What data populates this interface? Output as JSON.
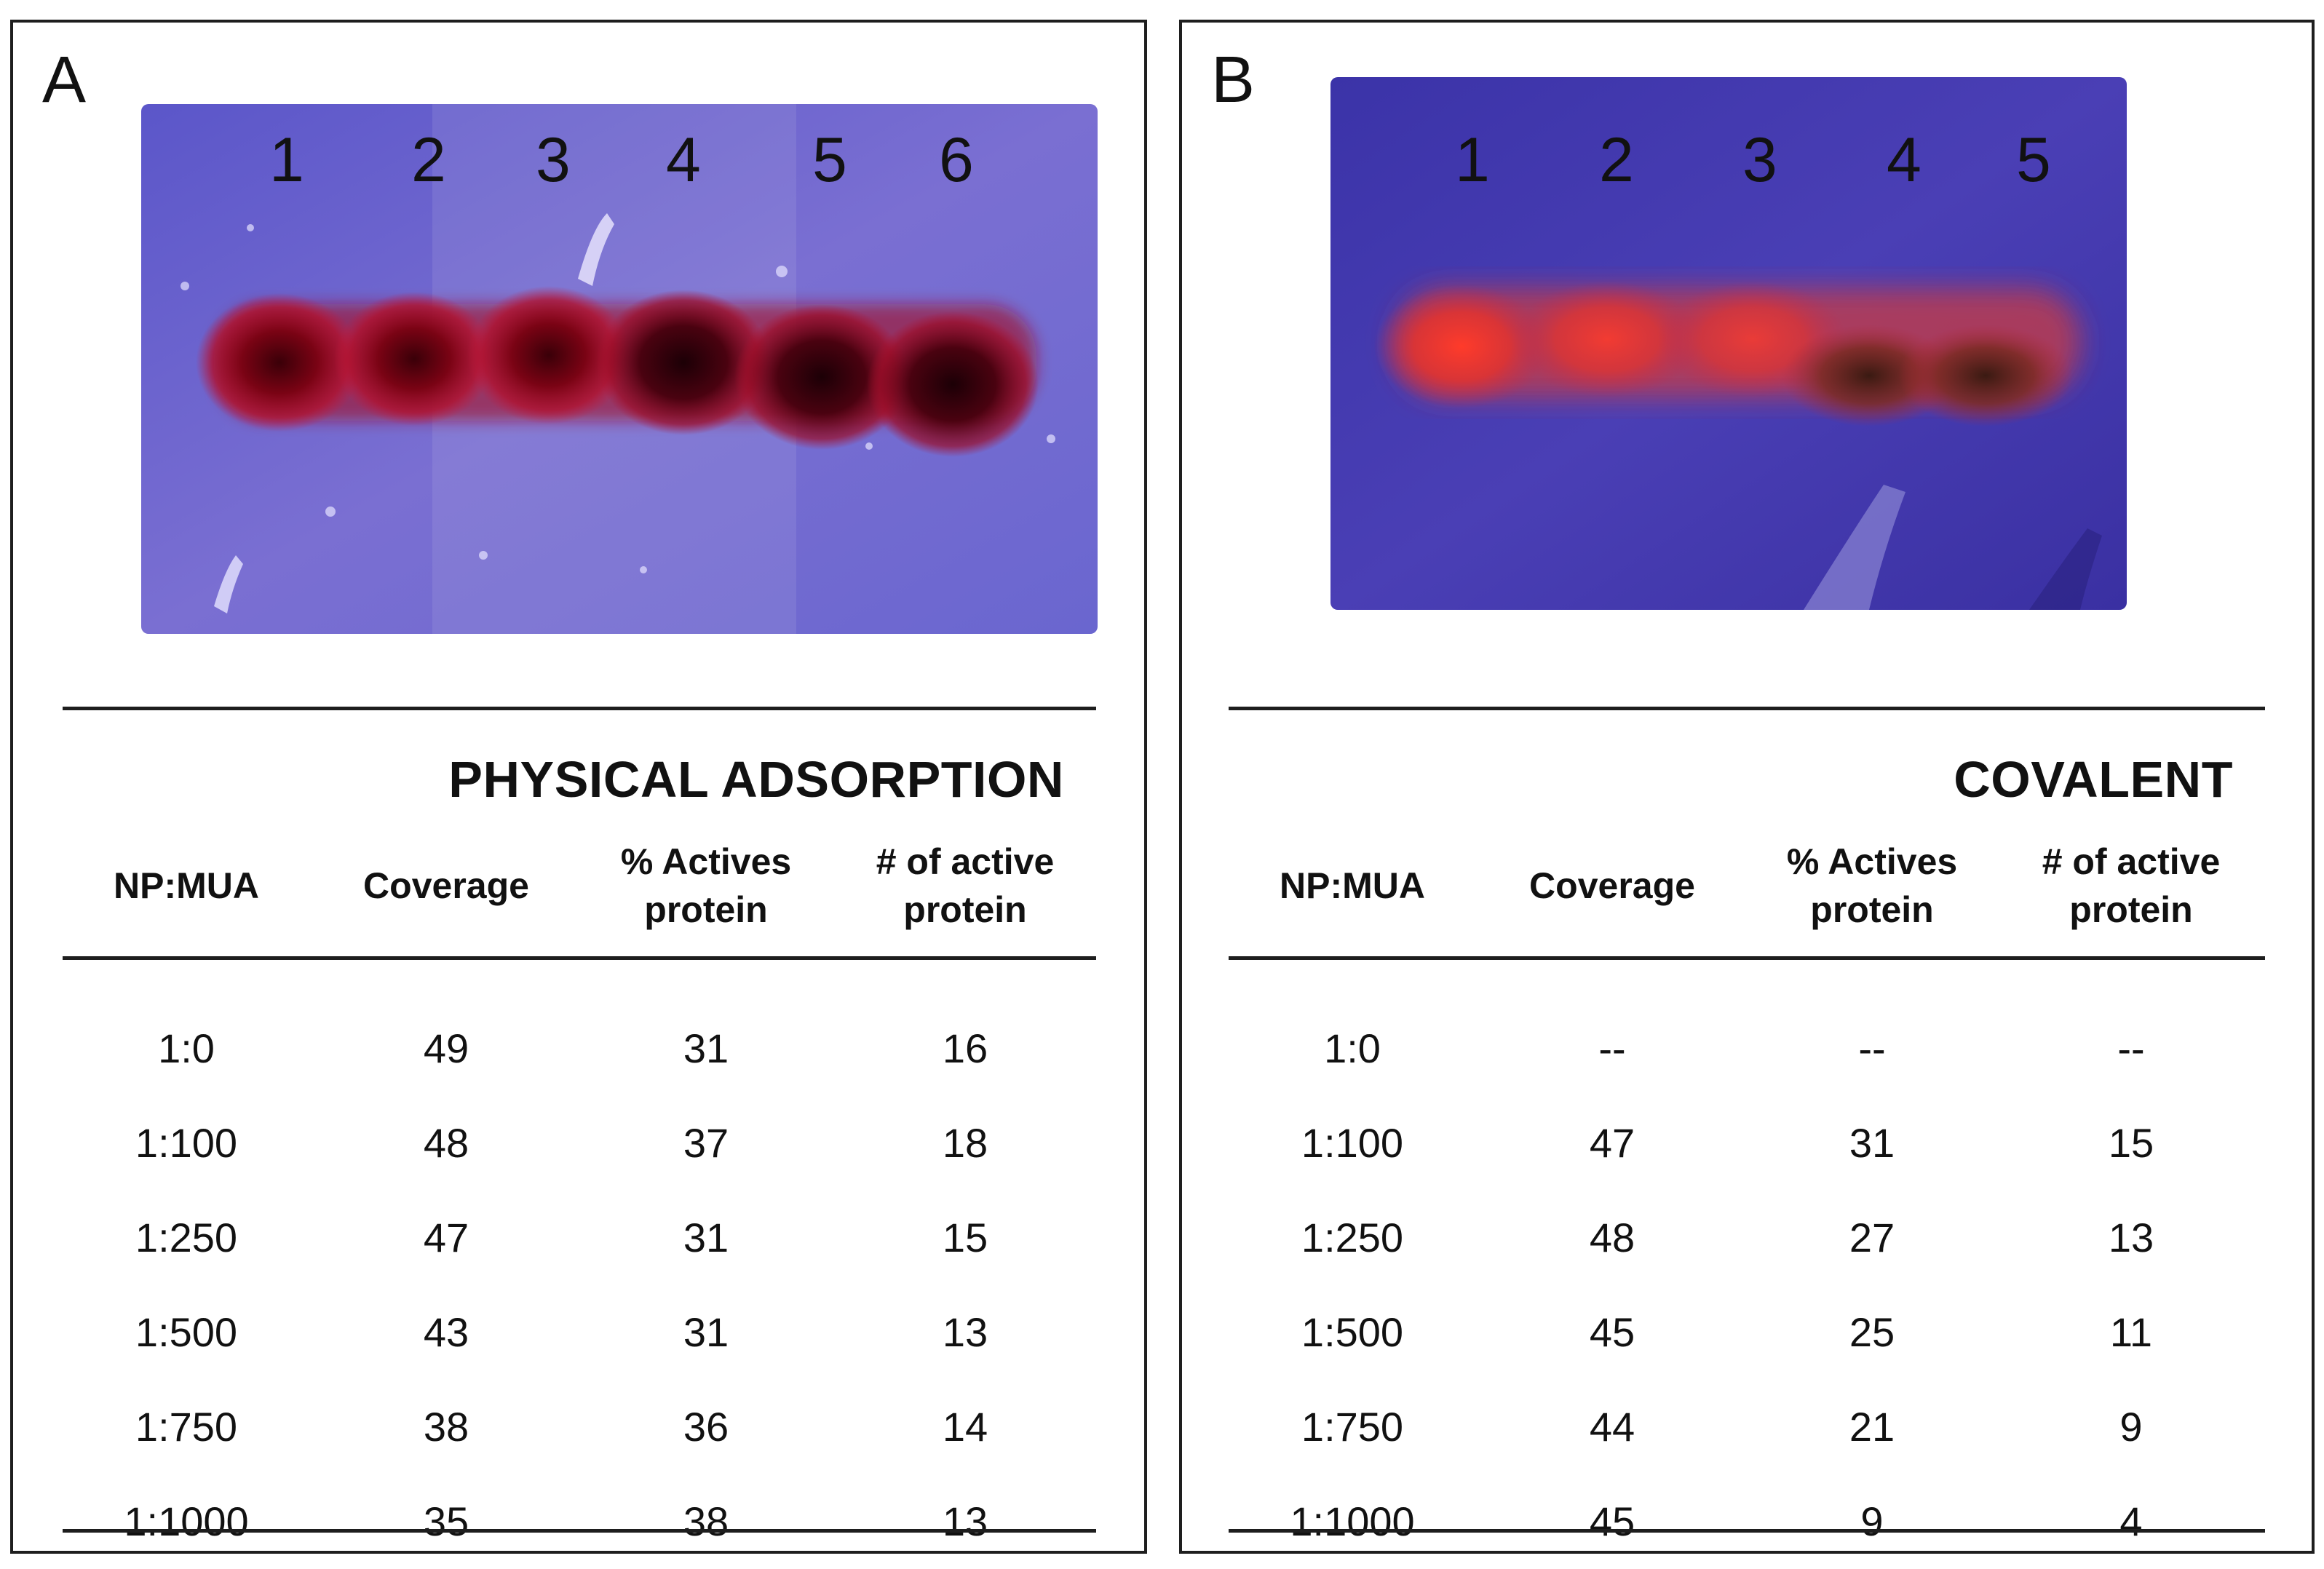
{
  "panels": [
    {
      "letter": "A",
      "lanes": [
        "1",
        "2",
        "3",
        "4",
        "5",
        "6"
      ],
      "table": {
        "title": "PHYSICAL ADSORPTION",
        "headers": [
          "NP:MUA",
          "Coverage",
          "% Actives\nprotein",
          "# of active\nprotein"
        ],
        "rows": [
          [
            "1:0",
            "49",
            "31",
            "16"
          ],
          [
            "1:100",
            "48",
            "37",
            "18"
          ],
          [
            "1:250",
            "47",
            "31",
            "15"
          ],
          [
            "1:500",
            "43",
            "31",
            "13"
          ],
          [
            "1:750",
            "38",
            "36",
            "14"
          ],
          [
            "1:1000",
            "35",
            "38",
            "13"
          ]
        ]
      }
    },
    {
      "letter": "B",
      "lanes": [
        "1",
        "2",
        "3",
        "4",
        "5"
      ],
      "table": {
        "title": "COVALENT",
        "headers": [
          "NP:MUA",
          "Coverage",
          "% Actives\nprotein",
          "# of active\nprotein"
        ],
        "rows": [
          [
            "1:0",
            "--",
            "--",
            "--"
          ],
          [
            "1:100",
            "47",
            "31",
            "15"
          ],
          [
            "1:250",
            "48",
            "27",
            "13"
          ],
          [
            "1:500",
            "45",
            "25",
            "11"
          ],
          [
            "1:750",
            "44",
            "21",
            "9"
          ],
          [
            "1:1000",
            "45",
            "9",
            "4"
          ]
        ]
      }
    }
  ]
}
